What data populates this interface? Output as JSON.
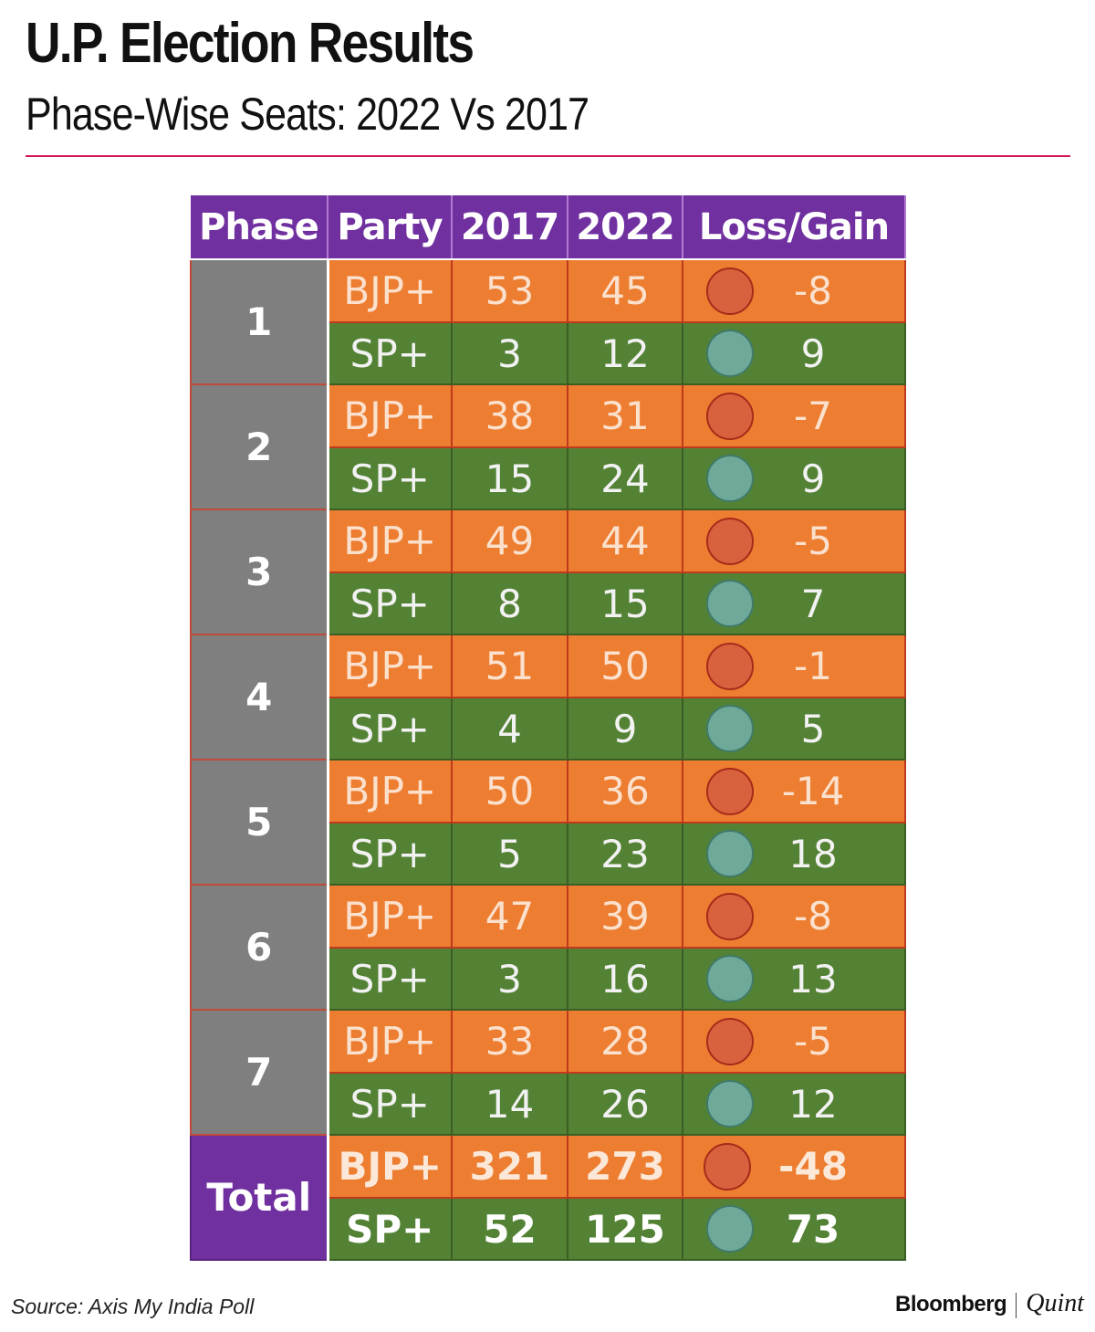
{
  "header": {
    "title": "U.P. Election Results",
    "subtitle": "Phase-Wise Seats: 2022 Vs 2017"
  },
  "colors": {
    "header_bg": "#7030a0",
    "phase_bg": "#7f7f7f",
    "bjp_row": "#ed7d31",
    "sp_row": "#548235",
    "loss_dot": "#d9623e",
    "gain_dot": "#6fa99a",
    "rule": "#d4145a"
  },
  "chart_data": {
    "type": "table",
    "columns": [
      "Phase",
      "Party",
      "2017",
      "2022",
      "Loss/Gain"
    ],
    "rows": [
      {
        "phase": "1",
        "entries": [
          {
            "party": "BJP+",
            "y2017": "53",
            "y2022": "45",
            "change": "-8",
            "indicator": "loss"
          },
          {
            "party": "SP+",
            "y2017": "3",
            "y2022": "12",
            "change": "9",
            "indicator": "gain"
          }
        ]
      },
      {
        "phase": "2",
        "entries": [
          {
            "party": "BJP+",
            "y2017": "38",
            "y2022": "31",
            "change": "-7",
            "indicator": "loss"
          },
          {
            "party": "SP+",
            "y2017": "15",
            "y2022": "24",
            "change": "9",
            "indicator": "gain"
          }
        ]
      },
      {
        "phase": "3",
        "entries": [
          {
            "party": "BJP+",
            "y2017": "49",
            "y2022": "44",
            "change": "-5",
            "indicator": "loss"
          },
          {
            "party": "SP+",
            "y2017": "8",
            "y2022": "15",
            "change": "7",
            "indicator": "gain"
          }
        ]
      },
      {
        "phase": "4",
        "entries": [
          {
            "party": "BJP+",
            "y2017": "51",
            "y2022": "50",
            "change": "-1",
            "indicator": "loss"
          },
          {
            "party": "SP+",
            "y2017": "4",
            "y2022": "9",
            "change": "5",
            "indicator": "gain"
          }
        ]
      },
      {
        "phase": "5",
        "entries": [
          {
            "party": "BJP+",
            "y2017": "50",
            "y2022": "36",
            "change": "-14",
            "indicator": "loss"
          },
          {
            "party": "SP+",
            "y2017": "5",
            "y2022": "23",
            "change": "18",
            "indicator": "gain"
          }
        ]
      },
      {
        "phase": "6",
        "entries": [
          {
            "party": "BJP+",
            "y2017": "47",
            "y2022": "39",
            "change": "-8",
            "indicator": "loss"
          },
          {
            "party": "SP+",
            "y2017": "3",
            "y2022": "16",
            "change": "13",
            "indicator": "gain"
          }
        ]
      },
      {
        "phase": "7",
        "entries": [
          {
            "party": "BJP+",
            "y2017": "33",
            "y2022": "28",
            "change": "-5",
            "indicator": "loss"
          },
          {
            "party": "SP+",
            "y2017": "14",
            "y2022": "26",
            "change": "12",
            "indicator": "gain"
          }
        ]
      }
    ],
    "total": {
      "label": "Total",
      "entries": [
        {
          "party": "BJP+",
          "y2017": "321",
          "y2022": "273",
          "change": "-48",
          "indicator": "loss"
        },
        {
          "party": "SP+",
          "y2017": "52",
          "y2022": "125",
          "change": "73",
          "indicator": "gain"
        }
      ]
    }
  },
  "footer": {
    "source": "Source: Axis My India Poll",
    "brand_primary": "Bloomberg",
    "brand_secondary": "Quint"
  }
}
